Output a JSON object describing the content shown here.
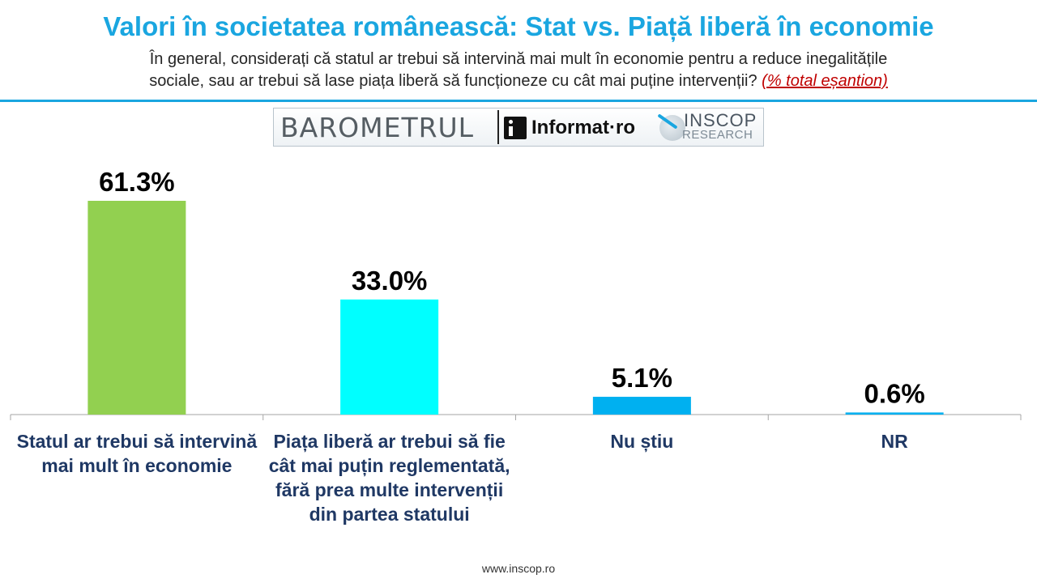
{
  "header": {
    "title": "Valori în societatea românească: Stat vs. Piață liberă în economie",
    "subtitle_line1": "În general, considerați că statul ar trebui să intervină mai mult în economie pentru a reduce inegalitățile",
    "subtitle_line2": "sociale, sau ar trebui să lase piața liberă să funcționeze cu cât mai puține intervenții?",
    "subtitle_note": "(% total eșantion)"
  },
  "logo": {
    "barometrul": "BAROMETRUL",
    "informat": "Informat·ro",
    "inscop": "INSCOP",
    "research": "RESEARCH"
  },
  "chart_data": {
    "type": "bar",
    "categories": [
      "Statul ar trebui să intervină mai mult în economie",
      "Piața liberă ar trebui să fie cât mai puțin reglementată, fără prea multe intervenții din partea statului",
      "Nu știu",
      "NR"
    ],
    "values": [
      61.3,
      33.0,
      5.1,
      0.6
    ],
    "data_labels": [
      "61.3%",
      "33.0%",
      "5.1%",
      "0.6%"
    ],
    "colors": [
      "#92d050",
      "#00ffff",
      "#00b0f0",
      "#00b0f0"
    ],
    "ylim": [
      0,
      61.3
    ],
    "grid": false,
    "legend": "none"
  },
  "footer": {
    "url": "www.inscop.ro"
  }
}
